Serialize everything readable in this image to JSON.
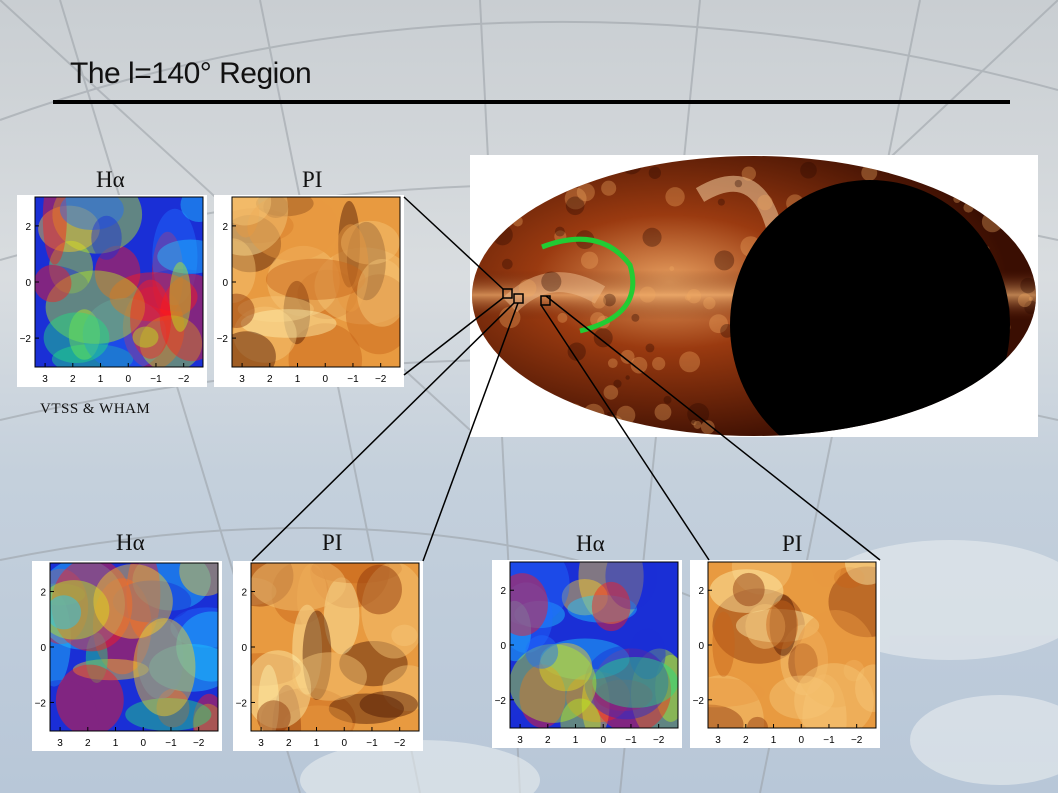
{
  "slide": {
    "title": "The l=140° Region",
    "source_note": "VTSS & WHAM"
  },
  "panel_labels": {
    "top_left_halpha": "Hα",
    "top_left_pi": "PI",
    "bottom_left_halpha": "Hα",
    "bottom_left_pi": "PI",
    "bottom_right_halpha": "Hα",
    "bottom_right_pi": "PI"
  },
  "axes": {
    "x_ticks": [
      "3",
      "2",
      "1",
      "0",
      "−1",
      "−2"
    ],
    "y_ticks": [
      "2",
      "0",
      "−2"
    ]
  },
  "colors": {
    "halpha_low": "#1a2fd6",
    "halpha_high": "#ff1a1a",
    "pi_low": "#4a1400",
    "pi_high": "#fff2b0",
    "loop_outline": "#22cc33",
    "background_top": "#c9ced2"
  }
}
